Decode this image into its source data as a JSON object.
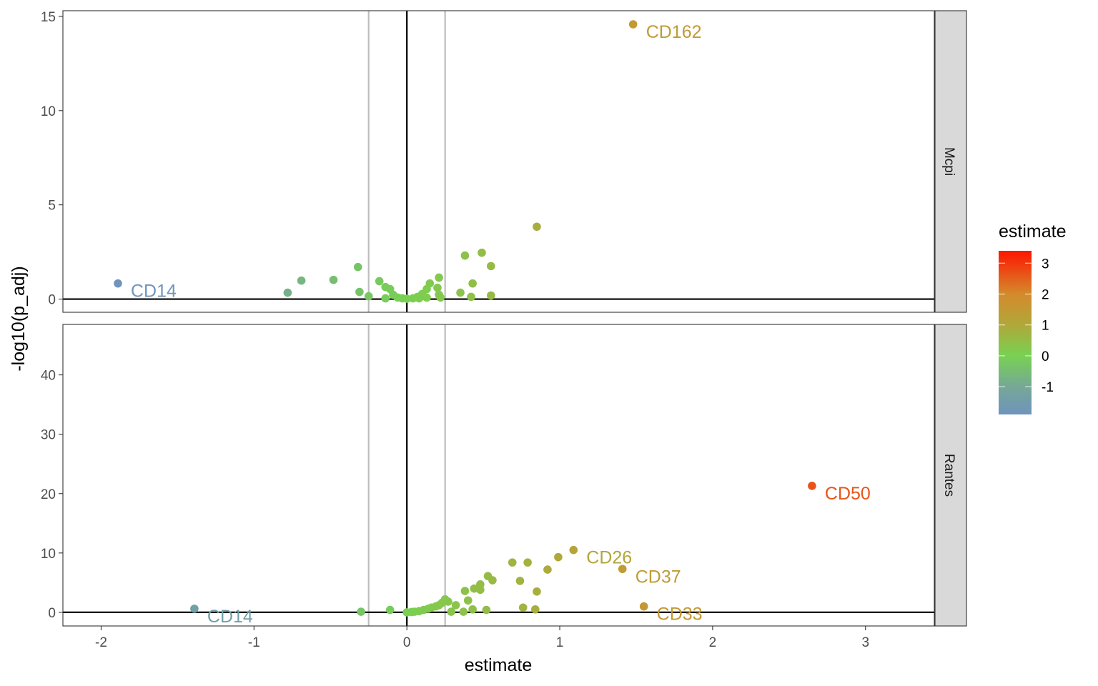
{
  "chart_data": {
    "type": "scatter",
    "xlabel": "estimate",
    "ylabel": "-log10(p_adj)",
    "xlim": [
      -2.25,
      3.45
    ],
    "x_ticks": [
      -2,
      -1,
      0,
      1,
      2,
      3
    ],
    "x_tick_labels": [
      "-2",
      "-1",
      "0",
      "1",
      "2",
      "3"
    ],
    "reference_lines": {
      "vertical_grey": [
        -0.25,
        0.25
      ],
      "vertical_black": 0,
      "horizontal_black": 0
    },
    "legend": {
      "title": "estimate",
      "placement": "right",
      "range": [
        -1.9,
        3.4
      ],
      "ticks": [
        3,
        2,
        1,
        0,
        -1
      ],
      "tick_labels": [
        "3",
        "2",
        "1",
        "0",
        "-1"
      ],
      "stops": [
        {
          "v": -1.9,
          "color": "#6f94bd"
        },
        {
          "v": -1,
          "color": "#76a896"
        },
        {
          "v": 0,
          "color": "#78d152"
        },
        {
          "v": 1,
          "color": "#b0a83a"
        },
        {
          "v": 2,
          "color": "#d48a2c"
        },
        {
          "v": 3.4,
          "color": "#ff1500"
        }
      ]
    },
    "panels": [
      {
        "strip": "Mcpi",
        "ylim": [
          -0.7,
          15.3
        ],
        "y_ticks": [
          0,
          5,
          10,
          15
        ],
        "y_tick_labels": [
          "0",
          "5",
          "10",
          "15"
        ],
        "points": [
          [
            -1.89,
            0.83
          ],
          [
            -0.78,
            0.34
          ],
          [
            -0.69,
            0.98
          ],
          [
            -0.48,
            1.02
          ],
          [
            -0.32,
            1.7
          ],
          [
            -0.31,
            0.38
          ],
          [
            -0.25,
            0.15
          ],
          [
            -0.18,
            0.95
          ],
          [
            -0.14,
            0.64
          ],
          [
            -0.11,
            0.53
          ],
          [
            -0.14,
            0.04
          ],
          [
            -0.09,
            0.23
          ],
          [
            -0.06,
            0.08
          ],
          [
            -0.03,
            0.04
          ],
          [
            0.0,
            0.02
          ],
          [
            0.04,
            0.04
          ],
          [
            0.07,
            0.12
          ],
          [
            0.08,
            0.04
          ],
          [
            0.1,
            0.27
          ],
          [
            0.13,
            0.53
          ],
          [
            0.13,
            0.08
          ],
          [
            0.15,
            0.83
          ],
          [
            0.2,
            0.6
          ],
          [
            0.21,
            0.23
          ],
          [
            0.22,
            0.08
          ],
          [
            0.21,
            1.14
          ],
          [
            0.35,
            0.34
          ],
          [
            0.38,
            2.31
          ],
          [
            0.43,
            0.83
          ],
          [
            0.42,
            0.12
          ],
          [
            0.49,
            2.46
          ],
          [
            0.55,
            1.75
          ],
          [
            0.55,
            0.19
          ],
          [
            0.85,
            3.84
          ],
          [
            1.48,
            14.58
          ]
        ],
        "labels": [
          {
            "text": "CD162",
            "x": 1.48,
            "y": 14.58
          },
          {
            "text": "CD14",
            "x": -1.89,
            "y": 0.83
          }
        ]
      },
      {
        "strip": "Rantes",
        "ylim": [
          -2.3,
          48.5
        ],
        "y_ticks": [
          0,
          10,
          20,
          30,
          40
        ],
        "y_tick_labels": [
          "0",
          "10",
          "20",
          "30",
          "40"
        ],
        "points": [
          [
            -1.39,
            0.6
          ],
          [
            -0.3,
            0.1
          ],
          [
            -0.11,
            0.4
          ],
          [
            0.0,
            0.0
          ],
          [
            0.03,
            0.05
          ],
          [
            0.05,
            0.1
          ],
          [
            0.08,
            0.2
          ],
          [
            0.11,
            0.4
          ],
          [
            0.14,
            0.6
          ],
          [
            0.16,
            0.8
          ],
          [
            0.19,
            1.0
          ],
          [
            0.21,
            1.2
          ],
          [
            0.23,
            1.6
          ],
          [
            0.25,
            2.2
          ],
          [
            0.27,
            1.8
          ],
          [
            0.29,
            0.1
          ],
          [
            0.32,
            1.2
          ],
          [
            0.37,
            0.1
          ],
          [
            0.38,
            3.6
          ],
          [
            0.4,
            2.0
          ],
          [
            0.43,
            0.5
          ],
          [
            0.44,
            4.0
          ],
          [
            0.48,
            3.8
          ],
          [
            0.48,
            4.7
          ],
          [
            0.52,
            0.4
          ],
          [
            0.53,
            6.1
          ],
          [
            0.56,
            5.4
          ],
          [
            0.69,
            8.4
          ],
          [
            0.74,
            5.3
          ],
          [
            0.76,
            0.8
          ],
          [
            0.79,
            8.4
          ],
          [
            0.84,
            0.5
          ],
          [
            0.85,
            3.5
          ],
          [
            0.92,
            7.2
          ],
          [
            0.99,
            9.3
          ],
          [
            1.09,
            10.5
          ],
          [
            1.41,
            7.3
          ],
          [
            1.55,
            1.0
          ],
          [
            2.65,
            21.3
          ]
        ],
        "labels": [
          {
            "text": "CD50",
            "x": 2.65,
            "y": 21.3
          },
          {
            "text": "CD26",
            "x": 1.09,
            "y": 10.5
          },
          {
            "text": "CD37",
            "x": 1.41,
            "y": 7.3
          },
          {
            "text": "CD33",
            "x": 1.55,
            "y": 1.0
          },
          {
            "text": "CD14",
            "x": -1.39,
            "y": 0.6
          }
        ]
      }
    ]
  }
}
